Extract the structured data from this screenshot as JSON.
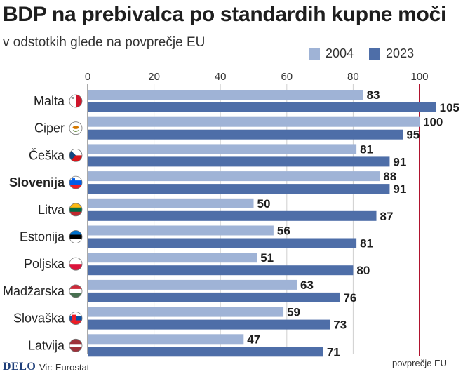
{
  "header": {
    "title": "BDP na prebivalca po standardih kupne moči",
    "subtitle": "v odstotkih glede na povprečje EU"
  },
  "footer": {
    "logo": "DELO",
    "source": "Vir: Eurostat"
  },
  "colors": {
    "series_2004": "#9fb3d6",
    "series_2023": "#4e6ea8",
    "reference_line": "#b0132e"
  },
  "chart_data": {
    "type": "bar",
    "orientation": "horizontal",
    "title": "BDP na prebivalca po standardih kupne moči",
    "subtitle": "v odstotkih glede na povprečje EU",
    "categories": [
      "Malta",
      "Ciper",
      "Češka",
      "Slovenija",
      "Litva",
      "Estonija",
      "Poljska",
      "Madžarska",
      "Slovaška",
      "Latvija"
    ],
    "highlight_category": "Slovenija",
    "series": [
      {
        "name": "2004",
        "values": [
          83,
          100,
          81,
          88,
          50,
          56,
          51,
          63,
          59,
          47
        ]
      },
      {
        "name": "2023",
        "values": [
          105,
          95,
          91,
          91,
          87,
          81,
          80,
          76,
          73,
          71
        ]
      }
    ],
    "xlim": [
      0,
      110
    ],
    "xticks": [
      0,
      20,
      40,
      60,
      80,
      100
    ],
    "reference_line": {
      "value": 100,
      "label": "povprečje EU"
    },
    "legend": [
      "2004",
      "2023"
    ],
    "legend_position": "top-right",
    "grid": true,
    "flags": [
      "malta-flag-icon",
      "cyprus-flag-icon",
      "czech-flag-icon",
      "slovenia-flag-icon",
      "lithuania-flag-icon",
      "estonia-flag-icon",
      "poland-flag-icon",
      "hungary-flag-icon",
      "slovakia-flag-icon",
      "latvia-flag-icon"
    ]
  }
}
